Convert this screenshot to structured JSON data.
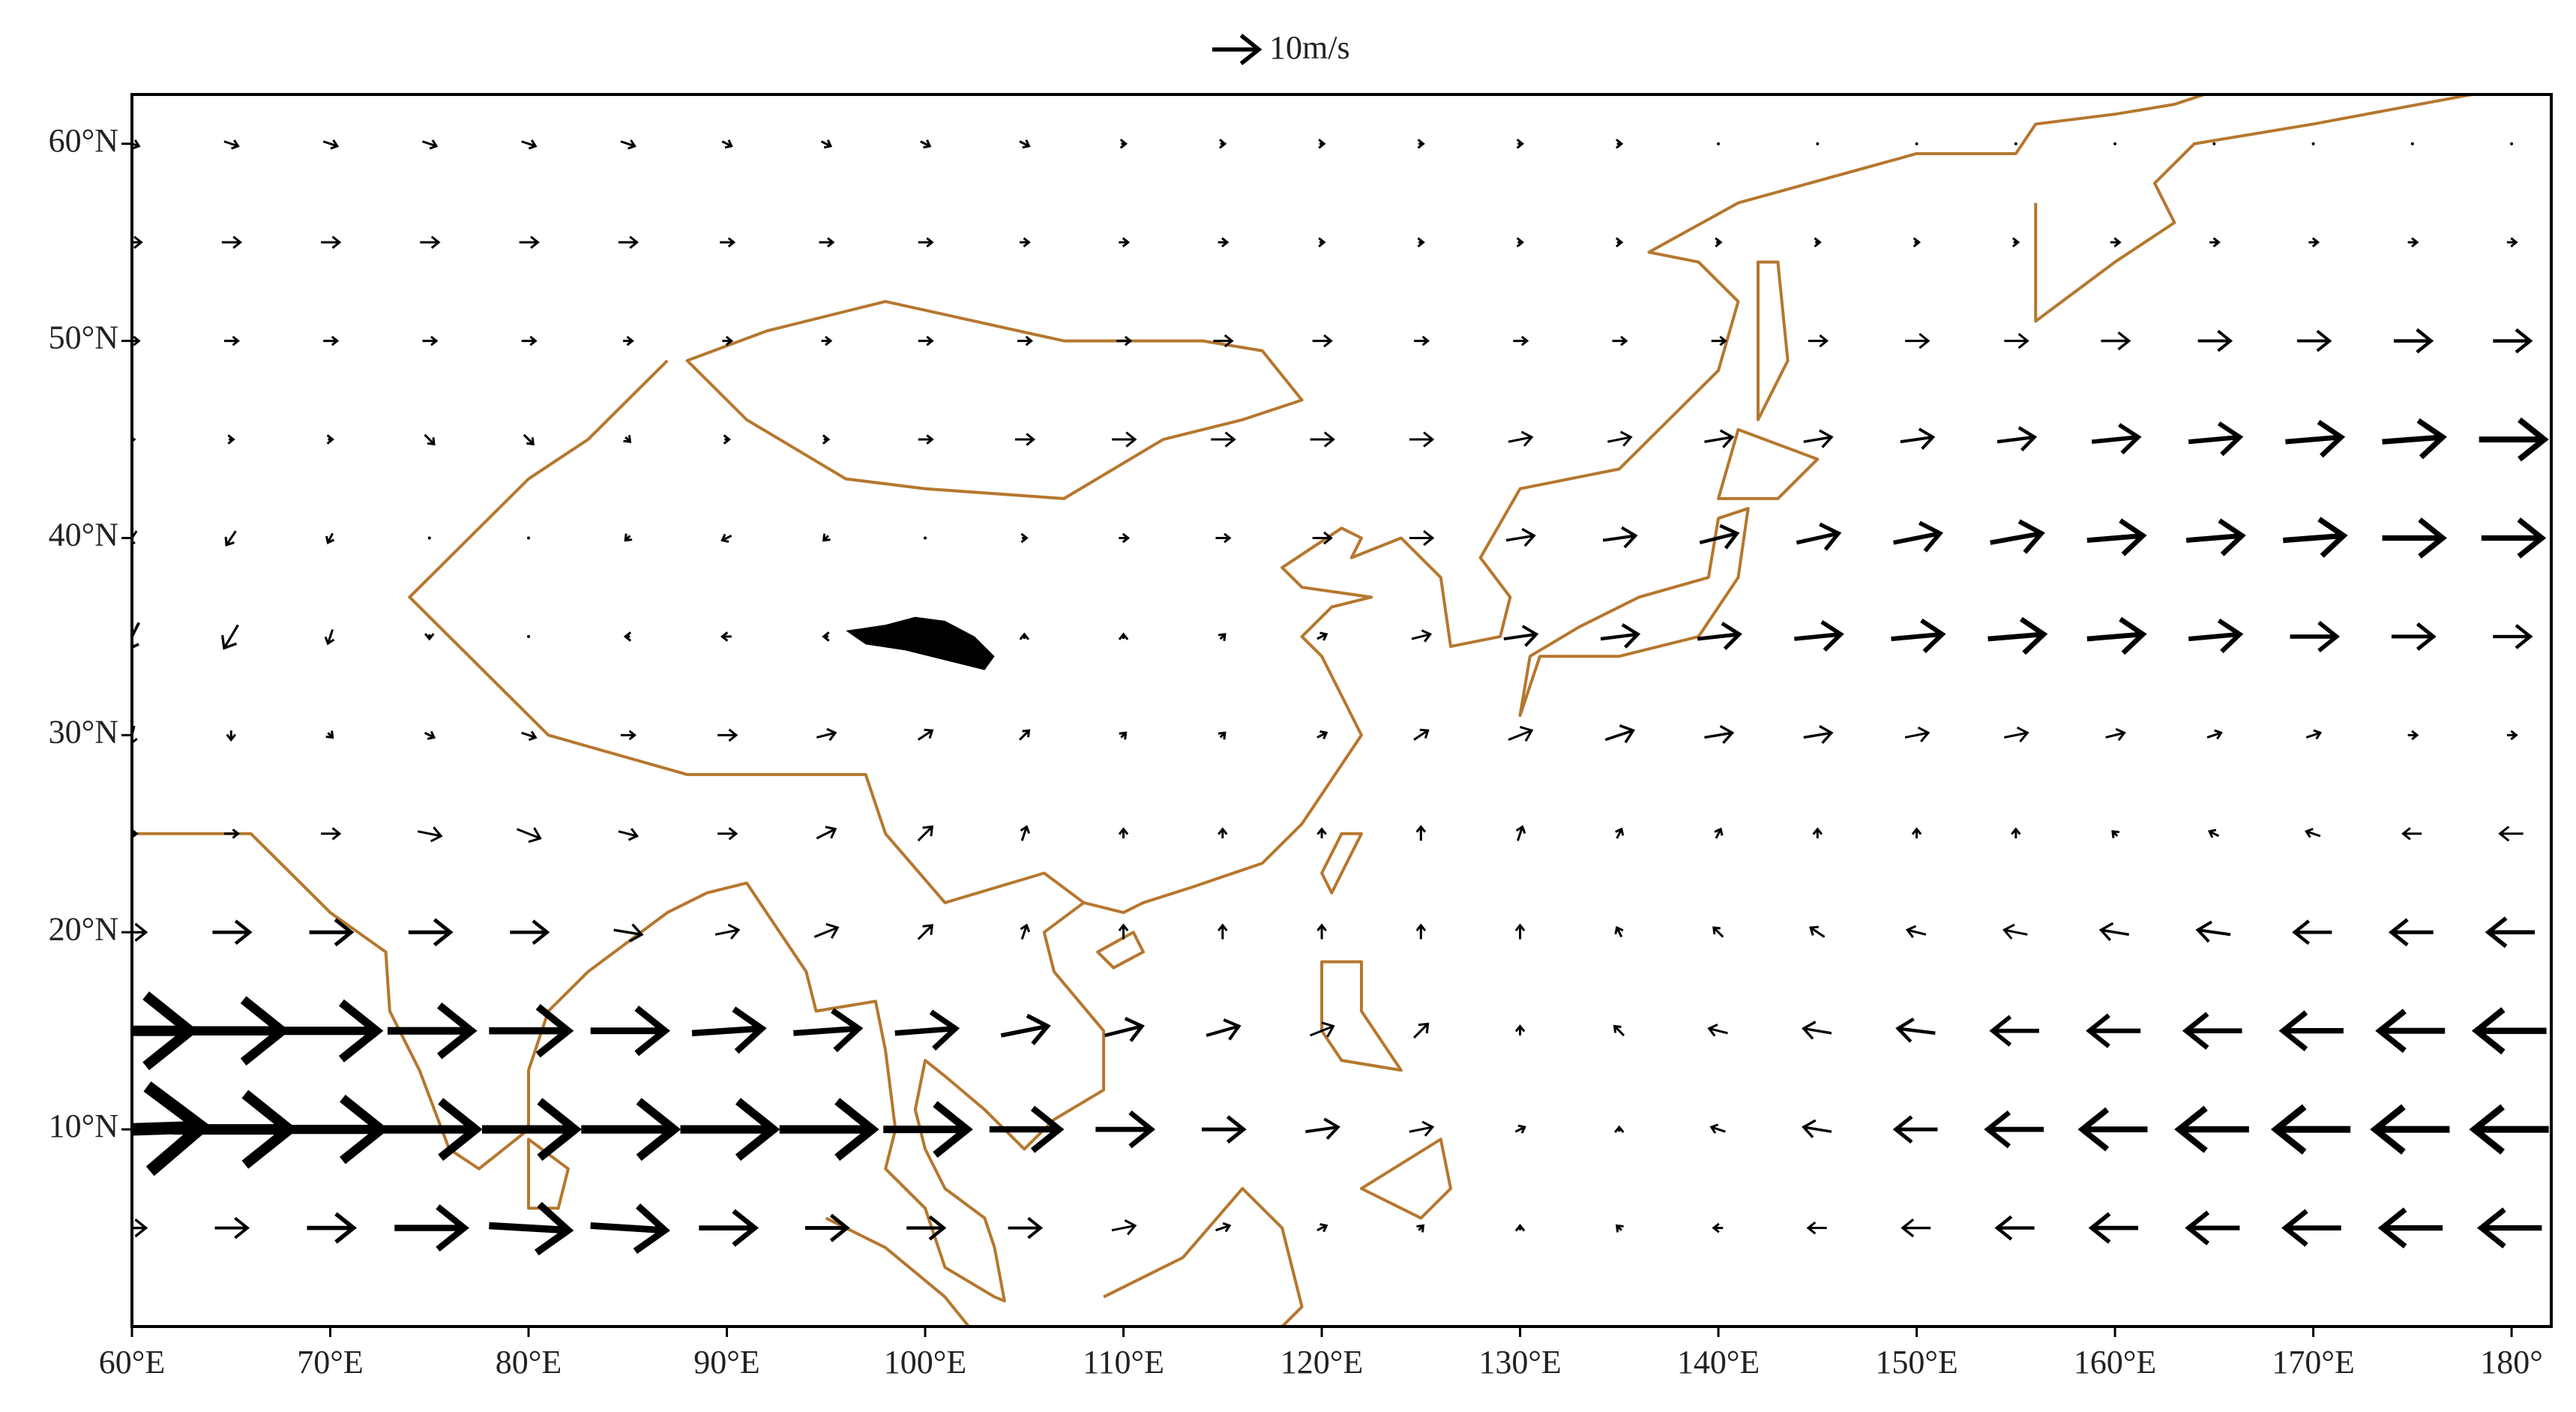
{
  "map": {
    "reference": {
      "label": "10m/s",
      "speed": 10
    },
    "xlim": [
      60,
      182
    ],
    "ylim": [
      0,
      62.5
    ],
    "lon_ticks": [
      {
        "value": 60,
        "label": "60°E"
      },
      {
        "value": 70,
        "label": "70°E"
      },
      {
        "value": 80,
        "label": "80°E"
      },
      {
        "value": 90,
        "label": "90°E"
      },
      {
        "value": 100,
        "label": "100°E"
      },
      {
        "value": 110,
        "label": "110°E"
      },
      {
        "value": 120,
        "label": "120°E"
      },
      {
        "value": 130,
        "label": "130°E"
      },
      {
        "value": 140,
        "label": "140°E"
      },
      {
        "value": 150,
        "label": "150°E"
      },
      {
        "value": 160,
        "label": "160°E"
      },
      {
        "value": 170,
        "label": "170°E"
      },
      {
        "value": 180,
        "label": "180°"
      }
    ],
    "lat_ticks": [
      {
        "value": 10,
        "label": "10°N"
      },
      {
        "value": 20,
        "label": "20°N"
      },
      {
        "value": 30,
        "label": "30°N"
      },
      {
        "value": 40,
        "label": "40°N"
      },
      {
        "value": 50,
        "label": "50°N"
      },
      {
        "value": 60,
        "label": "60°N"
      }
    ],
    "wind": {
      "lon": [
        60,
        65,
        70,
        75,
        80,
        85,
        90,
        95,
        100,
        105,
        110,
        115,
        120,
        125,
        130,
        135,
        140,
        145,
        150,
        155,
        160,
        165,
        170,
        175,
        180
      ],
      "lat": [
        60,
        55,
        50,
        45,
        40,
        35,
        30,
        25,
        20,
        15,
        10,
        5
      ],
      "u": [
        [
          3,
          3,
          3,
          3,
          3,
          3,
          2,
          2,
          2,
          2,
          1,
          1,
          1,
          1,
          1,
          1,
          0,
          0,
          0,
          0,
          0,
          0,
          0,
          0,
          0
        ],
        [
          4,
          4,
          4,
          4,
          4,
          4,
          3,
          3,
          3,
          2,
          2,
          2,
          1,
          1,
          1,
          1,
          1,
          1,
          1,
          1,
          2,
          2,
          2,
          2,
          2
        ],
        [
          3,
          3,
          3,
          3,
          3,
          2,
          2,
          2,
          3,
          3,
          3,
          4,
          4,
          3,
          3,
          3,
          3,
          4,
          5,
          5,
          6,
          7,
          7,
          8,
          8
        ],
        [
          1,
          1,
          1,
          2,
          2,
          1,
          1,
          1,
          3,
          4,
          5,
          5,
          5,
          5,
          5,
          5,
          6,
          6,
          7,
          8,
          10,
          11,
          12,
          13,
          14
        ],
        [
          -2,
          -2,
          -1,
          0,
          0,
          -1,
          -2,
          -1,
          0,
          1,
          2,
          3,
          4,
          5,
          6,
          7,
          8,
          9,
          10,
          11,
          12,
          12,
          13,
          13,
          13
        ],
        [
          -3,
          -3,
          -1,
          0,
          0,
          -1,
          -2,
          -1,
          0,
          0,
          0,
          1,
          2,
          4,
          7,
          8,
          9,
          10,
          11,
          12,
          12,
          11,
          10,
          9,
          8
        ],
        [
          -1,
          0,
          1,
          2,
          3,
          3,
          4,
          4,
          3,
          2,
          1,
          1,
          2,
          3,
          5,
          6,
          6,
          6,
          5,
          5,
          4,
          3,
          3,
          2,
          2
        ],
        [
          2,
          3,
          4,
          5,
          5,
          4,
          4,
          4,
          3,
          1,
          0,
          0,
          0,
          0,
          1,
          1,
          1,
          0,
          0,
          0,
          -1,
          -2,
          -3,
          -4,
          -5
        ],
        [
          6,
          8,
          9,
          9,
          8,
          6,
          5,
          5,
          3,
          1,
          0,
          0,
          0,
          0,
          0,
          -1,
          -2,
          -3,
          -4,
          -5,
          -6,
          -7,
          -8,
          -9,
          -10
        ],
        [
          25,
          22,
          20,
          18,
          17,
          16,
          15,
          14,
          13,
          10,
          8,
          7,
          5,
          3,
          0,
          -2,
          -4,
          -6,
          -8,
          -10,
          -11,
          -12,
          -13,
          -14,
          -15
        ],
        [
          30,
          25,
          22,
          20,
          20,
          20,
          20,
          20,
          18,
          15,
          12,
          9,
          7,
          5,
          2,
          0,
          -3,
          -6,
          -9,
          -12,
          -14,
          -15,
          -16,
          -16,
          -16
        ],
        [
          6,
          7,
          10,
          15,
          17,
          16,
          12,
          9,
          8,
          7,
          5,
          3,
          2,
          1,
          0,
          -1,
          -2,
          -4,
          -6,
          -8,
          -10,
          -11,
          -12,
          -13,
          -13
        ]
      ],
      "v": [
        [
          -1,
          -1,
          -1,
          -1,
          -1,
          -1,
          -1,
          -1,
          -1,
          -1,
          0,
          0,
          0,
          0,
          0,
          0,
          0,
          0,
          0,
          0,
          0,
          0,
          0,
          0,
          0
        ],
        [
          0,
          0,
          0,
          0,
          0,
          0,
          0,
          0,
          0,
          0,
          0,
          0,
          0,
          0,
          0,
          0,
          0,
          0,
          0,
          0,
          0,
          0,
          0,
          0,
          0
        ],
        [
          0,
          0,
          0,
          0,
          0,
          0,
          0,
          0,
          0,
          0,
          0,
          0,
          0,
          0,
          0,
          0,
          0,
          0,
          0,
          0,
          0,
          0,
          0,
          0,
          0
        ],
        [
          0,
          0,
          0,
          -2,
          -2,
          -1,
          0,
          0,
          0,
          0,
          0,
          0,
          0,
          0,
          1,
          1,
          1,
          1,
          1,
          1,
          1,
          1,
          1,
          1,
          0
        ],
        [
          -3,
          -3,
          -2,
          0,
          0,
          -1,
          -1,
          -1,
          0,
          0,
          0,
          0,
          0,
          0,
          1,
          1,
          2,
          2,
          2,
          2,
          1,
          1,
          1,
          0,
          0
        ],
        [
          -6,
          -5,
          -3,
          -1,
          0,
          0,
          0,
          0,
          0,
          1,
          1,
          1,
          1,
          1,
          1,
          1,
          1,
          1,
          1,
          1,
          1,
          1,
          0,
          0,
          0
        ],
        [
          -4,
          -2,
          -1,
          -1,
          -1,
          0,
          0,
          1,
          2,
          2,
          1,
          1,
          1,
          2,
          2,
          2,
          1,
          1,
          1,
          1,
          1,
          1,
          1,
          0,
          0
        ],
        [
          0,
          0,
          0,
          -1,
          -2,
          -1,
          0,
          2,
          3,
          3,
          2,
          2,
          2,
          3,
          3,
          2,
          2,
          2,
          2,
          2,
          1,
          1,
          1,
          0,
          0
        ],
        [
          0,
          0,
          0,
          0,
          0,
          -1,
          1,
          2,
          3,
          3,
          3,
          3,
          3,
          3,
          3,
          2,
          2,
          2,
          1,
          1,
          1,
          1,
          0,
          0,
          0
        ],
        [
          0,
          0,
          0,
          0,
          0,
          0,
          1,
          1,
          1,
          2,
          2,
          2,
          2,
          3,
          2,
          2,
          1,
          1,
          1,
          0,
          0,
          0,
          0,
          0,
          0
        ],
        [
          1,
          0,
          0,
          0,
          0,
          0,
          0,
          0,
          0,
          0,
          0,
          0,
          1,
          1,
          1,
          1,
          1,
          1,
          0,
          0,
          0,
          0,
          0,
          0,
          0
        ],
        [
          0,
          0,
          0,
          0,
          -1,
          -1,
          0,
          0,
          0,
          0,
          1,
          1,
          1,
          1,
          1,
          1,
          0,
          0,
          0,
          0,
          0,
          0,
          0,
          0,
          0
        ]
      ]
    }
  }
}
